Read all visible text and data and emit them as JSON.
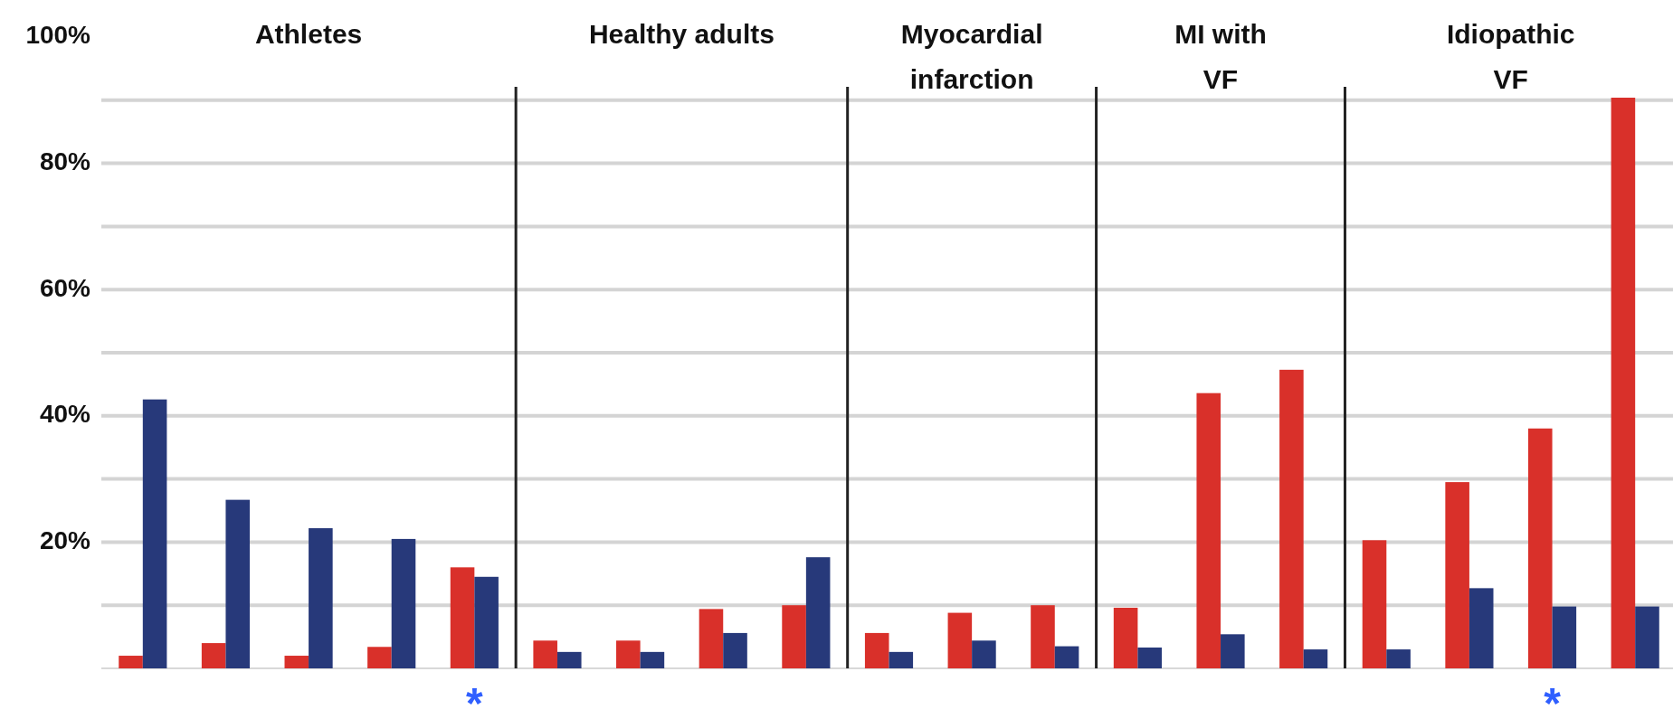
{
  "chart_data": {
    "type": "bar",
    "categories": [
      null,
      null,
      null,
      null,
      null,
      null,
      null,
      null,
      null,
      null,
      null,
      null,
      null,
      null,
      null,
      null,
      null,
      null,
      null
    ],
    "series": [
      {
        "color": "#d9302a",
        "values": [
          2,
          4,
          2,
          3.4,
          16,
          4.4,
          4.4,
          9.4,
          10,
          5.6,
          8.8,
          10,
          9.6,
          43.6,
          47.3,
          20.3,
          29.5,
          38,
          90.4
        ]
      },
      {
        "color": "#27397a",
        "values": [
          42.6,
          26.7,
          22.2,
          20.5,
          14.5,
          2.6,
          2.6,
          5.6,
          17.6,
          2.6,
          4.4,
          3.5,
          3.3,
          5.4,
          3,
          3,
          12.7,
          9.8,
          9.8
        ]
      }
    ],
    "ylim": [
      0,
      100
    ],
    "yticks": [
      {
        "value": 10,
        "label": null
      },
      {
        "value": 20,
        "label": "20%"
      },
      {
        "value": 30,
        "label": null
      },
      {
        "value": 40,
        "label": "40%"
      },
      {
        "value": 50,
        "label": null
      },
      {
        "value": 60,
        "label": "60%"
      },
      {
        "value": 70,
        "label": null
      },
      {
        "value": 80,
        "label": "80%"
      },
      {
        "value": 90,
        "label": null
      },
      {
        "value": 100,
        "label": "100%"
      }
    ],
    "grid": "y",
    "annotations": [
      "Athletes",
      "Healthy adults",
      "Myocardial\ninfarction",
      "MI with\nVF",
      "Idiopathic\nVF",
      "*",
      "*"
    ]
  }
}
